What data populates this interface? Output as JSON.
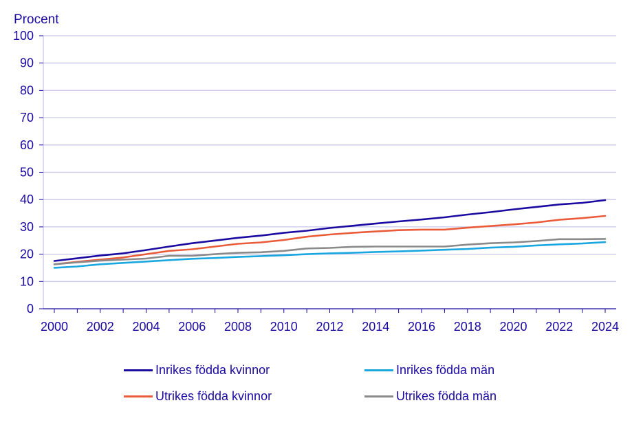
{
  "chart_data": {
    "type": "line",
    "ylabel": "Procent",
    "ylim": [
      0,
      100
    ],
    "yticks": [
      "0",
      "10",
      "20",
      "30",
      "40",
      "50",
      "60",
      "70",
      "80",
      "90",
      "100"
    ],
    "x": [
      2000,
      2001,
      2002,
      2003,
      2004,
      2005,
      2006,
      2007,
      2008,
      2009,
      2010,
      2011,
      2012,
      2013,
      2014,
      2015,
      2016,
      2017,
      2018,
      2019,
      2020,
      2021,
      2022,
      2023,
      2024
    ],
    "xticks": [
      "2000",
      "2002",
      "2004",
      "2006",
      "2008",
      "2010",
      "2012",
      "2014",
      "2016",
      "2018",
      "2020",
      "2022",
      "2024"
    ],
    "grid": true,
    "legend_position": "bottom",
    "series": [
      {
        "name": "Inrikes födda kvinnor",
        "color": "#1a0aa0",
        "values": [
          17.5,
          18.5,
          19.5,
          20.3,
          21.5,
          22.8,
          24.0,
          25.0,
          26.0,
          26.8,
          27.8,
          28.6,
          29.6,
          30.4,
          31.2,
          32.0,
          32.7,
          33.5,
          34.5,
          35.4,
          36.4,
          37.3,
          38.2,
          38.8,
          39.8
        ]
      },
      {
        "name": "Inrikes födda män",
        "color": "#1aa7e0",
        "values": [
          15.0,
          15.5,
          16.3,
          16.8,
          17.3,
          17.8,
          18.3,
          18.6,
          19.0,
          19.3,
          19.6,
          20.0,
          20.3,
          20.5,
          20.8,
          21.0,
          21.3,
          21.6,
          21.9,
          22.4,
          22.7,
          23.2,
          23.6,
          23.9,
          24.4
        ]
      },
      {
        "name": "Utrikes födda kvinnor",
        "color": "#ea5b3a",
        "values": [
          16.3,
          17.2,
          18.0,
          18.8,
          20.0,
          21.2,
          21.8,
          22.8,
          23.8,
          24.3,
          25.2,
          26.4,
          27.2,
          27.8,
          28.3,
          28.8,
          29.0,
          29.0,
          29.7,
          30.3,
          30.9,
          31.6,
          32.6,
          33.2,
          34.0
        ]
      },
      {
        "name": "Utrikes födda män",
        "color": "#8a8a8a",
        "values": [
          16.3,
          17.0,
          17.6,
          18.0,
          18.4,
          19.4,
          19.4,
          20.0,
          20.5,
          20.7,
          21.2,
          22.1,
          22.3,
          22.7,
          22.8,
          22.8,
          22.8,
          22.8,
          23.5,
          24.0,
          24.3,
          24.8,
          25.5,
          25.5,
          25.6
        ]
      }
    ]
  }
}
